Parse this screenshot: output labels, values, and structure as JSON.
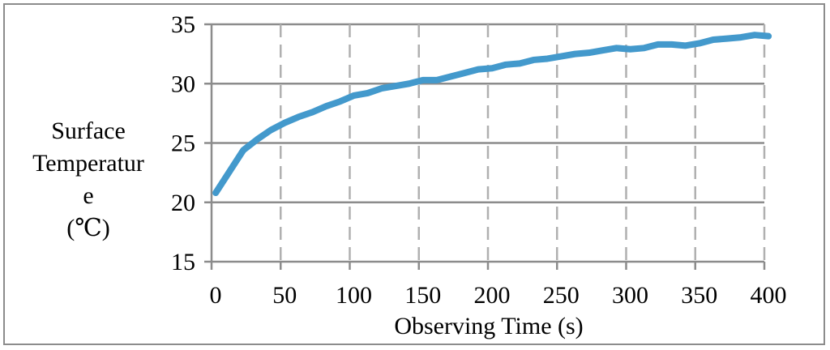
{
  "chart_data": {
    "type": "line",
    "xlabel": "Observing Time (s)",
    "ylabel_lines": [
      "Surface",
      "Temperatur",
      "e",
      "(℃)"
    ],
    "xlim": [
      0,
      400
    ],
    "ylim": [
      15,
      35
    ],
    "x_ticks": [
      0,
      50,
      100,
      150,
      200,
      250,
      300,
      350,
      400
    ],
    "y_ticks": [
      15,
      20,
      25,
      30,
      35
    ],
    "grid": {
      "x": "dashed",
      "y": "solid"
    },
    "series": [
      {
        "color": "#4399cc",
        "x": [
          0,
          10,
          20,
          30,
          40,
          50,
          60,
          70,
          80,
          90,
          100,
          110,
          120,
          130,
          140,
          150,
          160,
          170,
          180,
          190,
          200,
          210,
          220,
          230,
          240,
          250,
          260,
          270,
          280,
          290,
          300,
          310,
          320,
          330,
          340,
          350,
          360,
          370,
          380,
          390,
          400
        ],
        "y": [
          20.8,
          22.6,
          24.4,
          25.3,
          26.1,
          26.7,
          27.2,
          27.6,
          28.1,
          28.5,
          29.0,
          29.2,
          29.6,
          29.8,
          30.0,
          30.3,
          30.3,
          30.6,
          30.9,
          31.2,
          31.3,
          31.6,
          31.7,
          32.0,
          32.1,
          32.3,
          32.5,
          32.6,
          32.8,
          33.0,
          32.9,
          33.0,
          33.3,
          33.3,
          33.2,
          33.4,
          33.7,
          33.8,
          33.9,
          34.1,
          34.0
        ]
      }
    ]
  }
}
